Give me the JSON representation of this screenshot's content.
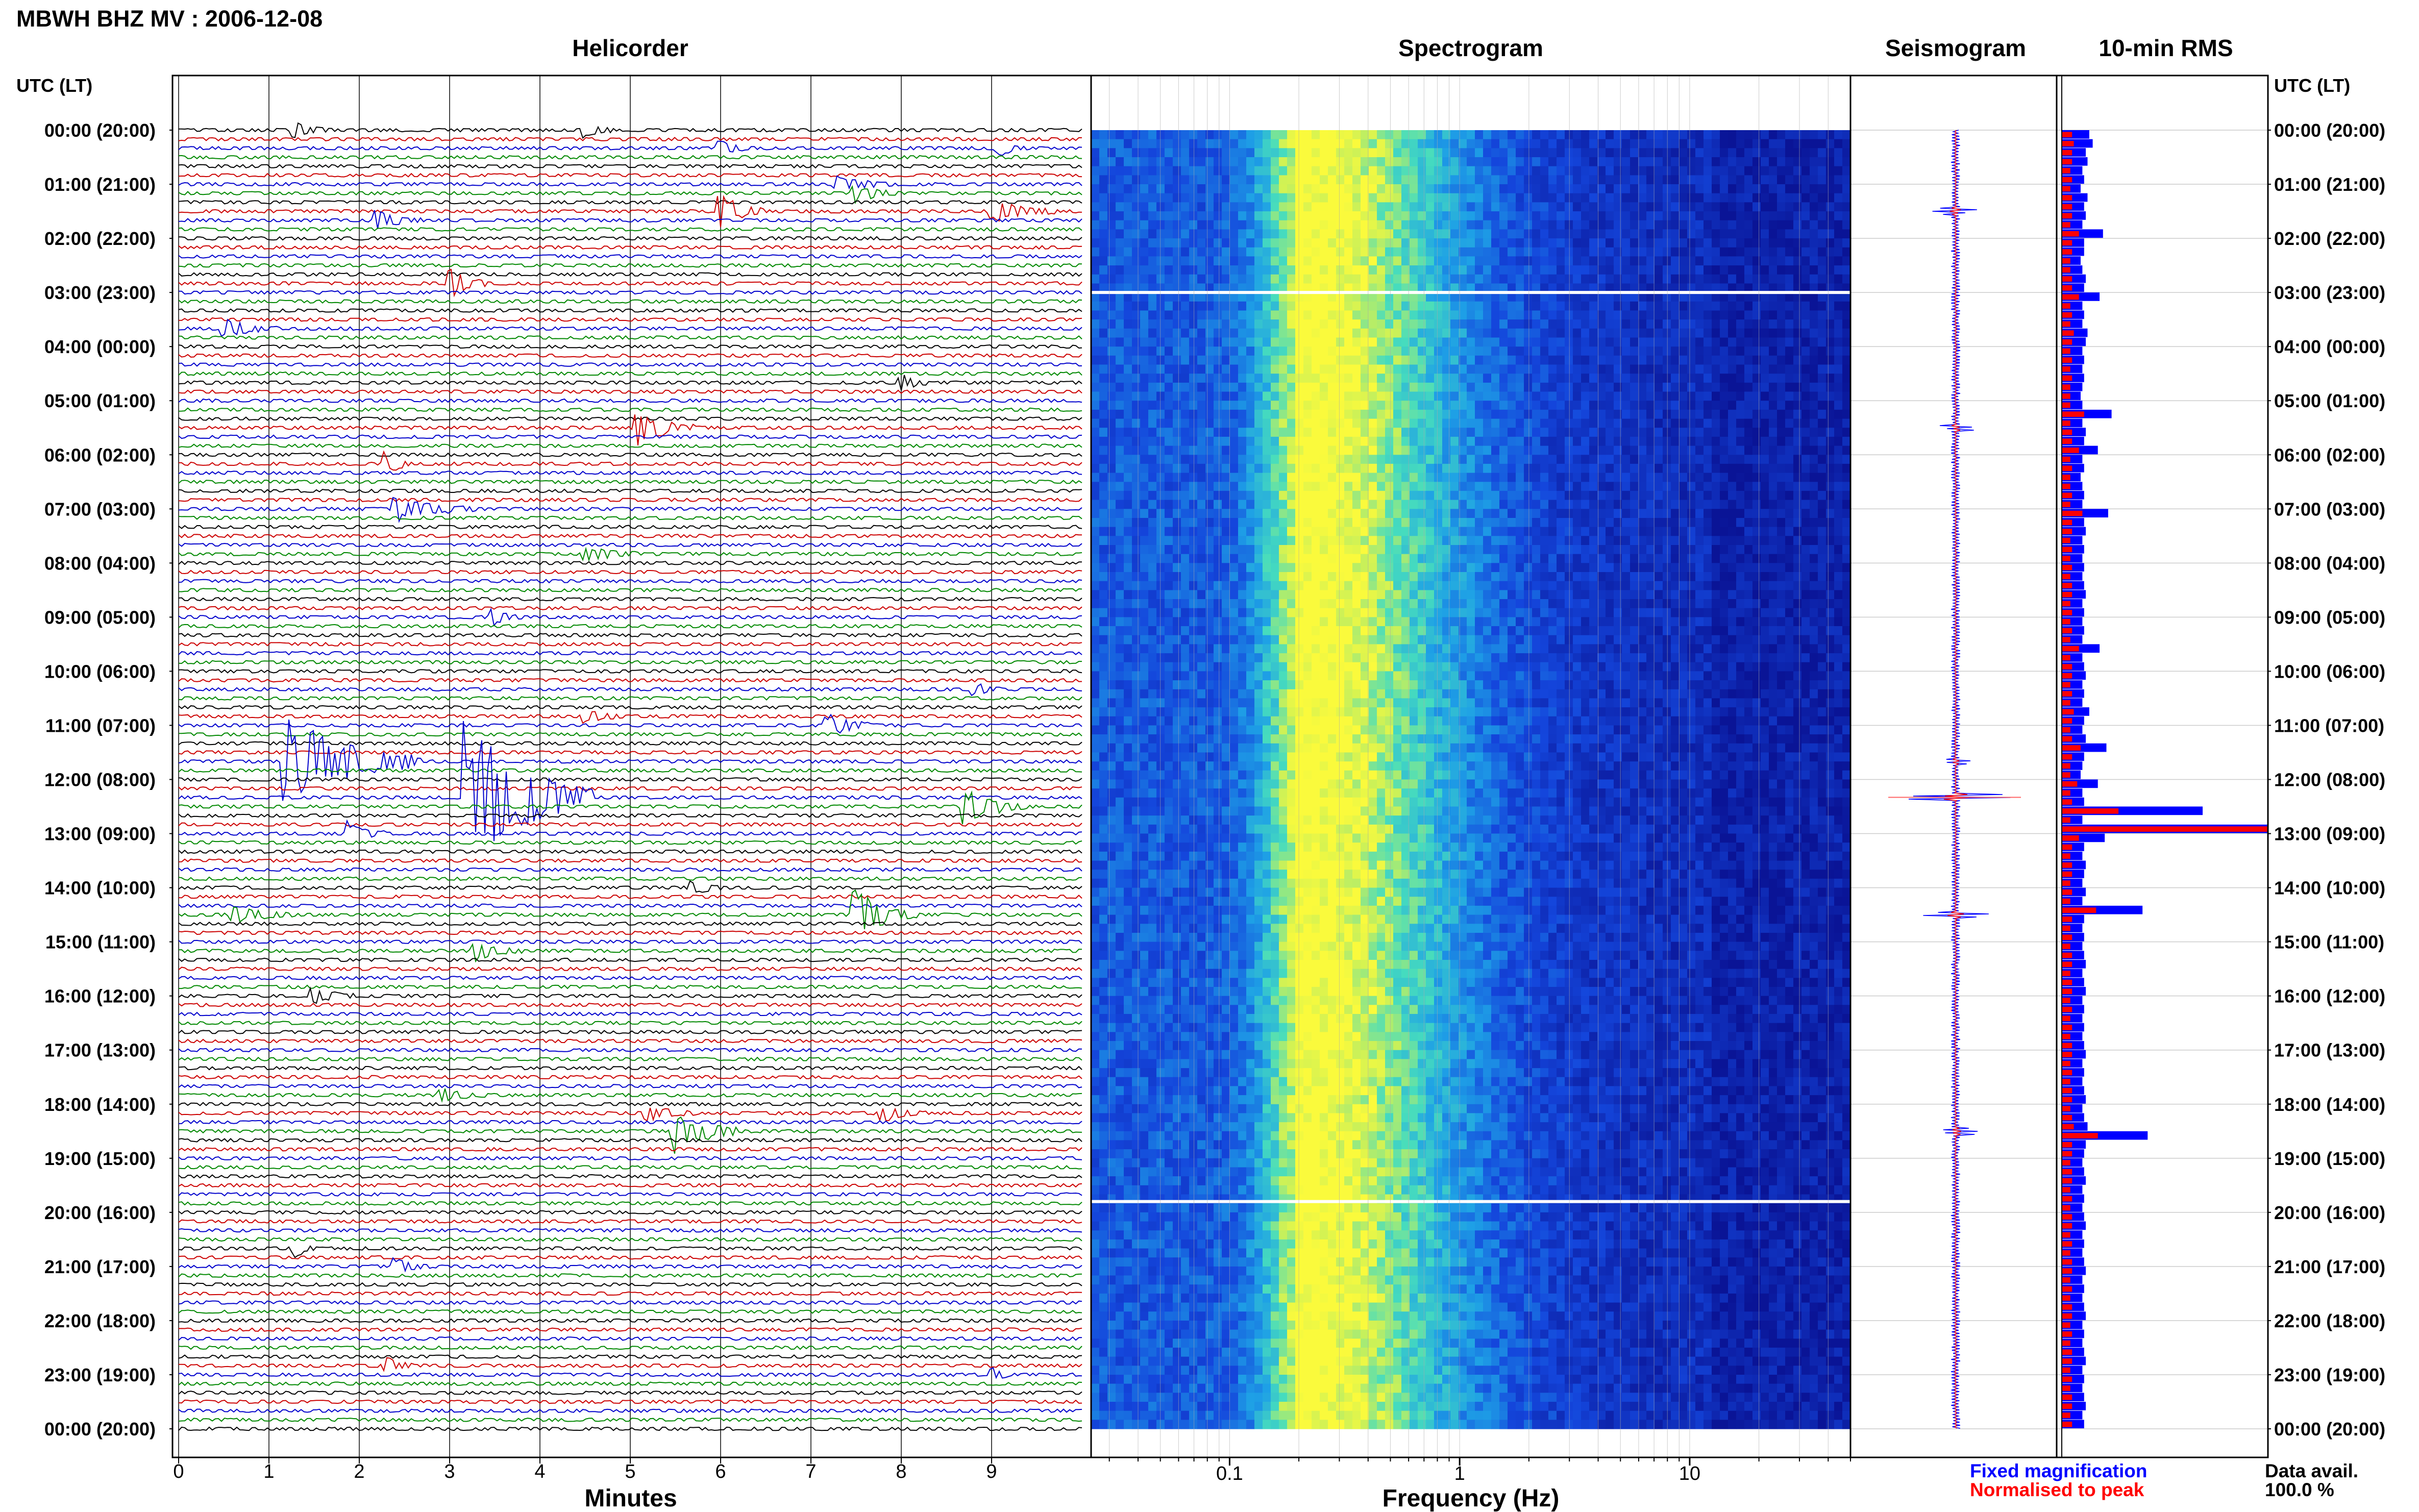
{
  "title": "MBWH BHZ MV : 2006-12-08",
  "headers": {
    "helicorder": "Helicorder",
    "spectrogram": "Spectrogram",
    "seismogram": "Seismogram",
    "rms": "10-min RMS"
  },
  "time_axis": {
    "left_label": "UTC (LT)",
    "right_label": "UTC (LT)",
    "ticks": [
      "00:00 (20:00)",
      "01:00 (21:00)",
      "02:00 (22:00)",
      "03:00 (23:00)",
      "04:00 (00:00)",
      "05:00 (01:00)",
      "06:00 (02:00)",
      "07:00 (03:00)",
      "08:00 (04:00)",
      "09:00 (05:00)",
      "10:00 (06:00)",
      "11:00 (07:00)",
      "12:00 (08:00)",
      "13:00 (09:00)",
      "14:00 (10:00)",
      "15:00 (11:00)",
      "16:00 (12:00)",
      "17:00 (13:00)",
      "18:00 (14:00)",
      "19:00 (15:00)",
      "20:00 (16:00)",
      "21:00 (17:00)",
      "22:00 (18:00)",
      "23:00 (19:00)",
      "00:00 (20:00)"
    ]
  },
  "helicorder_axis": {
    "label": "Minutes",
    "ticks": [
      "0",
      "1",
      "2",
      "3",
      "4",
      "5",
      "6",
      "7",
      "8",
      "9"
    ],
    "xlim": [
      0,
      10
    ],
    "line_colors": [
      "#000000",
      "#cc0000",
      "#0000cc",
      "#008800"
    ]
  },
  "spectrogram_axis": {
    "label": "Frequency (Hz)",
    "ticks": [
      "0.1",
      "1",
      "10"
    ],
    "scale": "log",
    "xlim": [
      0.025,
      50
    ]
  },
  "legend": {
    "fixed": "Fixed magnification",
    "normalised": "Normalised to peak",
    "fixed_color": "#0000ff",
    "normalised_color": "#ff0000"
  },
  "data_avail": {
    "label": "Data avail.",
    "value": "100.0 %"
  },
  "chart_data": {
    "type": "heatmap",
    "helicorder_events": [
      {
        "hour": 0.0,
        "minute": 1.3,
        "amp": 0.3,
        "dur": 0.4
      },
      {
        "hour": 0.0,
        "minute": 4.5,
        "amp": 0.35,
        "dur": 0.3
      },
      {
        "hour": 0.33,
        "minute": 6.0,
        "amp": 0.3,
        "dur": 0.3
      },
      {
        "hour": 0.33,
        "minute": 9.1,
        "amp": 0.3,
        "dur": 0.3
      },
      {
        "hour": 1.0,
        "minute": 7.3,
        "amp": 0.3,
        "dur": 0.6
      },
      {
        "hour": 1.17,
        "minute": 7.5,
        "amp": 0.35,
        "dur": 0.5
      },
      {
        "hour": 1.5,
        "minute": 6.0,
        "amp": 0.7,
        "dur": 0.5
      },
      {
        "hour": 1.5,
        "minute": 9.0,
        "amp": 0.5,
        "dur": 0.7
      },
      {
        "hour": 1.67,
        "minute": 2.2,
        "amp": 0.35,
        "dur": 0.5
      },
      {
        "hour": 2.83,
        "minute": 3.0,
        "amp": 0.6,
        "dur": 0.4
      },
      {
        "hour": 3.67,
        "minute": 0.5,
        "amp": 0.4,
        "dur": 0.6
      },
      {
        "hour": 4.67,
        "minute": 8.0,
        "amp": 0.35,
        "dur": 0.3
      },
      {
        "hour": 5.5,
        "minute": 5.1,
        "amp": 0.7,
        "dur": 0.6
      },
      {
        "hour": 6.17,
        "minute": 2.3,
        "amp": 0.45,
        "dur": 0.3
      },
      {
        "hour": 7.0,
        "minute": 2.4,
        "amp": 0.5,
        "dur": 0.9
      },
      {
        "hour": 7.83,
        "minute": 4.5,
        "amp": 0.35,
        "dur": 0.6
      },
      {
        "hour": 9.0,
        "minute": 3.5,
        "amp": 0.3,
        "dur": 0.3
      },
      {
        "hour": 10.33,
        "minute": 8.8,
        "amp": 0.3,
        "dur": 0.3
      },
      {
        "hour": 10.83,
        "minute": 4.5,
        "amp": 0.3,
        "dur": 0.4
      },
      {
        "hour": 11.0,
        "minute": 7.2,
        "amp": 0.45,
        "dur": 0.5
      },
      {
        "hour": 11.67,
        "minute": 1.2,
        "amp": 1.9,
        "dur": 1.5
      },
      {
        "hour": 12.33,
        "minute": 3.2,
        "amp": 3.2,
        "dur": 1.4
      },
      {
        "hour": 12.5,
        "minute": 8.7,
        "amp": 0.7,
        "dur": 0.7
      },
      {
        "hour": 13.0,
        "minute": 1.9,
        "amp": 0.5,
        "dur": 0.4
      },
      {
        "hour": 14.0,
        "minute": 5.7,
        "amp": 0.4,
        "dur": 0.3
      },
      {
        "hour": 14.5,
        "minute": 7.5,
        "amp": 1.0,
        "dur": 0.7
      },
      {
        "hour": 14.5,
        "minute": 0.6,
        "amp": 0.35,
        "dur": 0.7
      },
      {
        "hour": 15.17,
        "minute": 3.3,
        "amp": 0.4,
        "dur": 0.5
      },
      {
        "hour": 16.0,
        "minute": 1.5,
        "amp": 0.3,
        "dur": 0.5
      },
      {
        "hour": 17.83,
        "minute": 2.9,
        "amp": 0.3,
        "dur": 0.5
      },
      {
        "hour": 18.5,
        "minute": 5.5,
        "amp": 0.9,
        "dur": 0.7
      },
      {
        "hour": 18.17,
        "minute": 5.2,
        "amp": 0.35,
        "dur": 0.5
      },
      {
        "hour": 18.17,
        "minute": 7.8,
        "amp": 0.35,
        "dur": 0.5
      },
      {
        "hour": 20.67,
        "minute": 1.3,
        "amp": 0.35,
        "dur": 0.2
      },
      {
        "hour": 21.0,
        "minute": 2.4,
        "amp": 0.35,
        "dur": 0.4
      },
      {
        "hour": 22.83,
        "minute": 2.3,
        "amp": 0.35,
        "dur": 0.3
      },
      {
        "hour": 23.0,
        "minute": 9.0,
        "amp": 0.3,
        "dur": 0.2
      }
    ],
    "spectrogram": {
      "peak_frequency_hz": 0.2,
      "gap_hours": [
        3.0,
        19.8
      ]
    },
    "seismogram_events": [
      {
        "hour": 1.5,
        "amp": 0.3
      },
      {
        "hour": 5.5,
        "amp": 0.25
      },
      {
        "hour": 11.67,
        "amp": 0.25
      },
      {
        "hour": 12.33,
        "amp": 1.0
      },
      {
        "hour": 14.5,
        "amp": 0.6
      },
      {
        "hour": 18.5,
        "amp": 0.4
      }
    ],
    "rms_fixed": [
      1.6,
      1.8,
      1.4,
      1.5,
      1.2,
      1.3,
      1.1,
      1.5,
      1.3,
      1.4,
      1.2,
      2.4,
      1.3,
      1.3,
      1.1,
      1.2,
      1.4,
      1.3,
      2.2,
      1.2,
      1.3,
      1.2,
      1.5,
      1.4,
      1.2,
      1.3,
      1.2,
      1.3,
      1.2,
      1.1,
      1.2,
      2.9,
      1.2,
      1.4,
      1.3,
      2.1,
      1.2,
      1.3,
      1.1,
      1.2,
      1.3,
      1.2,
      2.7,
      1.3,
      1.4,
      1.2,
      1.3,
      1.2,
      1.3,
      1.2,
      1.3,
      1.4,
      1.2,
      1.3,
      1.2,
      1.3,
      1.2,
      2.2,
      1.2,
      1.3,
      1.4,
      1.2,
      1.3,
      1.2,
      1.6,
      1.3,
      1.2,
      1.4,
      2.6,
      1.3,
      1.2,
      1.1,
      2.1,
      1.2,
      1.3,
      8.2,
      1.2,
      12.0,
      2.5,
      1.3,
      1.2,
      1.4,
      1.3,
      1.2,
      1.4,
      1.2,
      4.7,
      1.3,
      1.2,
      1.3,
      1.2,
      1.3,
      1.4,
      1.2,
      1.3,
      1.4,
      1.2,
      1.3,
      1.2,
      1.3,
      1.2,
      1.3,
      1.4,
      1.2,
      1.3,
      1.2,
      1.3,
      1.4,
      1.2,
      1.3,
      1.5,
      5.0,
      1.4,
      1.3,
      1.2,
      1.3,
      1.4,
      1.2,
      1.3,
      1.2,
      1.3,
      1.4,
      1.2,
      1.3,
      1.2,
      1.3,
      1.4,
      1.2,
      1.3,
      1.2,
      1.3,
      1.4,
      1.2,
      1.3,
      1.2,
      1.3,
      1.4,
      1.2,
      1.3,
      1.2,
      1.3,
      1.4,
      1.2,
      1.3
    ],
    "rms_normalised": [
      0.6,
      0.7,
      0.6,
      0.6,
      0.5,
      0.6,
      0.5,
      0.6,
      0.6,
      0.6,
      0.5,
      1.0,
      0.6,
      0.6,
      0.5,
      0.5,
      0.6,
      0.6,
      1.0,
      0.5,
      0.6,
      0.5,
      0.7,
      0.6,
      0.5,
      0.6,
      0.5,
      0.6,
      0.5,
      0.5,
      0.5,
      1.3,
      0.5,
      0.6,
      0.6,
      1.0,
      0.5,
      0.6,
      0.5,
      0.5,
      0.6,
      0.5,
      1.2,
      0.6,
      0.6,
      0.5,
      0.6,
      0.5,
      0.6,
      0.5,
      0.6,
      0.6,
      0.5,
      0.6,
      0.5,
      0.6,
      0.5,
      1.0,
      0.5,
      0.6,
      0.6,
      0.5,
      0.6,
      0.5,
      0.7,
      0.6,
      0.5,
      0.6,
      1.1,
      0.6,
      0.5,
      0.5,
      0.9,
      0.5,
      0.6,
      3.3,
      0.5,
      12.0,
      1.0,
      0.6,
      0.5,
      0.6,
      0.6,
      0.5,
      0.6,
      0.5,
      2.0,
      0.6,
      0.5,
      0.6,
      0.5,
      0.6,
      0.6,
      0.5,
      0.6,
      0.6,
      0.5,
      0.6,
      0.5,
      0.6,
      0.5,
      0.6,
      0.6,
      0.5,
      0.6,
      0.5,
      0.6,
      0.6,
      0.5,
      0.6,
      0.7,
      2.1,
      0.6,
      0.6,
      0.5,
      0.6,
      0.6,
      0.5,
      0.6,
      0.5,
      0.6,
      0.6,
      0.5,
      0.6,
      0.5,
      0.6,
      0.6,
      0.5,
      0.6,
      0.5,
      0.6,
      0.6,
      0.5,
      0.6,
      0.5,
      0.6,
      0.6,
      0.5,
      0.6,
      0.5,
      0.6,
      0.6,
      0.5,
      0.6
    ]
  }
}
